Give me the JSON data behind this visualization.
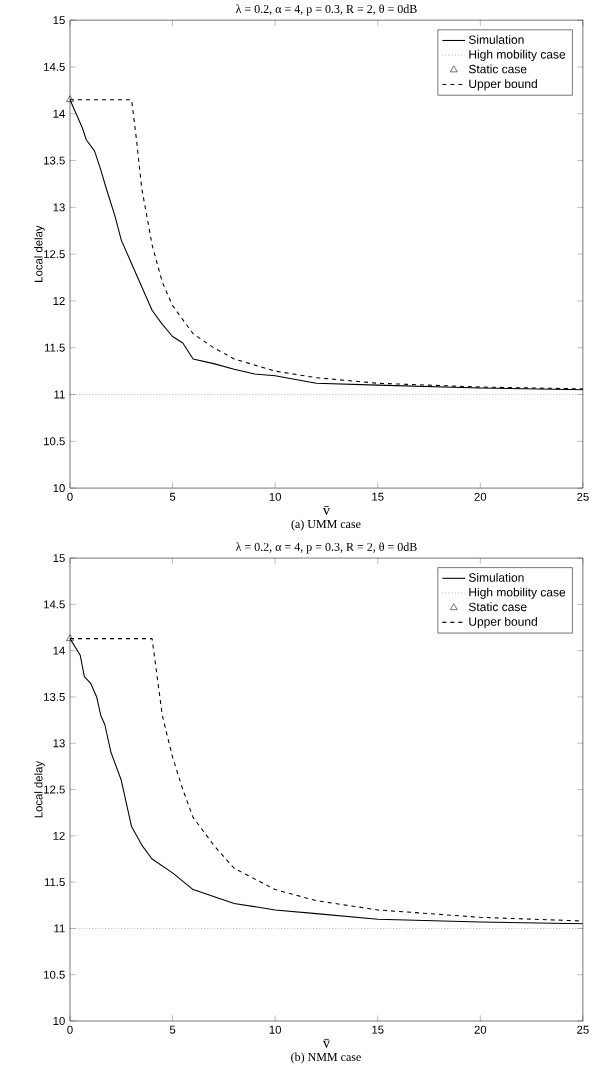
{
  "chart_data": [
    {
      "type": "line",
      "title": "λ = 0.2, α = 4, p = 0.3, R = 2, θ = 0dB",
      "xlabel": "v̄",
      "ylabel": "Local delay",
      "annotations": [
        "(a) UMM case"
      ],
      "xlim": [
        0,
        25
      ],
      "ylim": [
        10,
        15
      ],
      "xticks": [
        0,
        5,
        10,
        15,
        20,
        25
      ],
      "yticks": [
        10,
        10.5,
        11,
        11.5,
        12,
        12.5,
        13,
        13.5,
        14,
        14.5,
        15
      ],
      "legend": "top right",
      "series": [
        {
          "name": "Simulation",
          "color": "#000000",
          "line_style": "solid",
          "x": [
            0,
            0.3,
            0.6,
            0.8,
            1.2,
            1.5,
            1.8,
            2.2,
            2.5,
            3,
            3.5,
            4,
            4.5,
            5,
            5.5,
            6,
            7,
            8,
            9,
            10,
            12,
            15,
            20,
            25
          ],
          "values": [
            14.15,
            14.0,
            13.85,
            13.72,
            13.6,
            13.4,
            13.18,
            12.9,
            12.65,
            12.4,
            12.15,
            11.9,
            11.75,
            11.62,
            11.55,
            11.38,
            11.33,
            11.27,
            11.22,
            11.2,
            11.12,
            11.1,
            11.07,
            11.05
          ]
        },
        {
          "name": "High mobility case",
          "color": "#000000",
          "line_style": "dotted",
          "x": [
            0,
            25
          ],
          "values": [
            11,
            11
          ]
        },
        {
          "name": "Static case",
          "type": "scatter",
          "marker": "triangle",
          "color": "#000000",
          "x": [
            0
          ],
          "values": [
            14.15
          ]
        },
        {
          "name": "Upper bound",
          "color": "#000000",
          "line_style": "dashed",
          "x": [
            0,
            3,
            3.2,
            3.5,
            4,
            4.5,
            5,
            6,
            7,
            8,
            10,
            12,
            15,
            20,
            25
          ],
          "values": [
            14.15,
            14.15,
            13.8,
            13.2,
            12.6,
            12.2,
            11.95,
            11.65,
            11.5,
            11.38,
            11.25,
            11.18,
            11.12,
            11.08,
            11.06
          ]
        }
      ]
    },
    {
      "type": "line",
      "title": "λ = 0.2, α = 4, p = 0.3, R = 2, θ = 0dB",
      "xlabel": "v̄",
      "ylabel": "Local delay",
      "annotations": [
        "(b) NMM case"
      ],
      "xlim": [
        0,
        25
      ],
      "ylim": [
        10,
        15
      ],
      "xticks": [
        0,
        5,
        10,
        15,
        20,
        25
      ],
      "yticks": [
        10,
        10.5,
        11,
        11.5,
        12,
        12.5,
        13,
        13.5,
        14,
        14.5,
        15
      ],
      "legend": "top right",
      "series": [
        {
          "name": "Simulation",
          "color": "#000000",
          "line_style": "solid",
          "x": [
            0,
            0.5,
            0.7,
            1,
            1.3,
            1.5,
            1.7,
            2,
            2.5,
            3,
            3.5,
            4,
            5,
            6,
            8,
            10,
            12,
            15,
            20,
            25
          ],
          "values": [
            14.13,
            13.95,
            13.72,
            13.65,
            13.5,
            13.3,
            13.2,
            12.9,
            12.6,
            12.1,
            11.9,
            11.75,
            11.6,
            11.42,
            11.27,
            11.2,
            11.16,
            11.1,
            11.07,
            11.05
          ]
        },
        {
          "name": "High mobility case",
          "color": "#000000",
          "line_style": "dotted",
          "x": [
            0,
            25
          ],
          "values": [
            11,
            11
          ]
        },
        {
          "name": "Static case",
          "type": "scatter",
          "marker": "triangle",
          "color": "#000000",
          "x": [
            0
          ],
          "values": [
            14.13
          ]
        },
        {
          "name": "Upper bound",
          "color": "#000000",
          "line_style": "dashed",
          "x": [
            0,
            4,
            4.2,
            4.5,
            5,
            5.5,
            6,
            7,
            8,
            10,
            12,
            15,
            20,
            25
          ],
          "values": [
            14.13,
            14.13,
            13.8,
            13.3,
            12.85,
            12.5,
            12.2,
            11.9,
            11.65,
            11.42,
            11.3,
            11.2,
            11.12,
            11.08
          ]
        }
      ]
    }
  ]
}
